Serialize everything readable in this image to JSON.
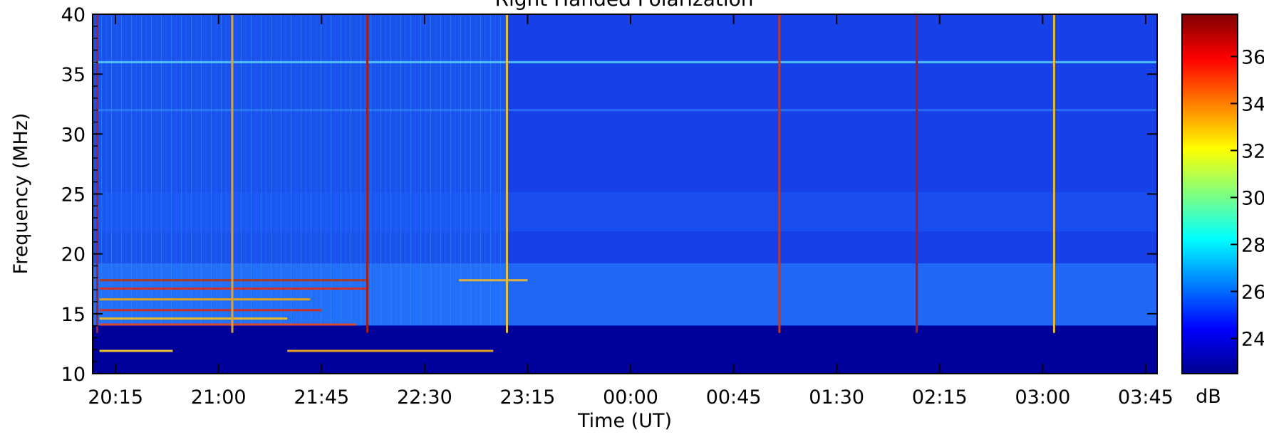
{
  "chart_data": {
    "type": "heatmap",
    "title": "Right Handed Polarization",
    "xlabel": "Time (UT)",
    "ylabel": "Frequency (MHz)",
    "x_ticks": [
      "20:15",
      "21:00",
      "21:45",
      "22:30",
      "23:15",
      "00:00",
      "00:45",
      "01:30",
      "02:15",
      "03:00",
      "03:45"
    ],
    "x_range": [
      "20:05",
      "03:50"
    ],
    "y_ticks": [
      10,
      15,
      20,
      25,
      30,
      35,
      40
    ],
    "ylim": [
      10,
      40
    ],
    "colorbar": {
      "label": "dB",
      "ticks": [
        24,
        26,
        28,
        30,
        32,
        34,
        36
      ],
      "range": [
        22.5,
        37.8
      ],
      "colormap": "jet"
    },
    "features": {
      "low_frequency_cutoff_mhz": 14,
      "persistent_band_mhz": [
        36,
        32
      ],
      "broadband_bursts_ut": [
        "20:07",
        "21:06",
        "22:05",
        "23:06",
        "01:05",
        "02:05",
        "03:05"
      ],
      "interference_lines": [
        {
          "start": "20:08",
          "end": "22:05",
          "frequency_mhz": 17.8
        },
        {
          "start": "20:08",
          "end": "22:05",
          "frequency_mhz": 17.1
        },
        {
          "start": "20:08",
          "end": "21:40",
          "frequency_mhz": 16.2
        },
        {
          "start": "20:08",
          "end": "21:45",
          "frequency_mhz": 15.3
        },
        {
          "start": "20:08",
          "end": "21:30",
          "frequency_mhz": 14.6
        },
        {
          "start": "20:08",
          "end": "22:00",
          "frequency_mhz": 14.1
        },
        {
          "start": "20:08",
          "end": "20:40",
          "frequency_mhz": 11.9
        },
        {
          "start": "21:30",
          "end": "23:00",
          "frequency_mhz": 11.9
        },
        {
          "start": "22:45",
          "end": "23:15",
          "frequency_mhz": 17.8
        }
      ]
    },
    "grid": false,
    "legend": "none"
  }
}
